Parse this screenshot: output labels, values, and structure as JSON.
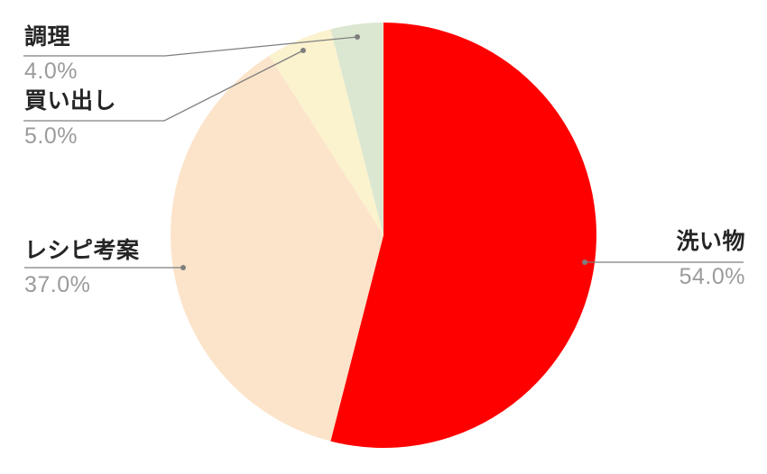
{
  "figure": {
    "background_color": "#ffffff",
    "title": ""
  },
  "chart_data": {
    "type": "pie",
    "title": "",
    "labels": [
      "洗い物",
      "レシピ考案",
      "買い出し",
      "調理"
    ],
    "values": [
      54.0,
      37.0,
      5.0,
      4.0
    ],
    "percent_labels": [
      "54.0%",
      "37.0%",
      "5.0%",
      "4.0%"
    ],
    "colors": [
      "#FE0000",
      "#FCE4CA",
      "#FBF2CE",
      "#DBE7D1"
    ],
    "total": 100,
    "start_angle_deg": 0,
    "direction": "clockwise",
    "legend_position": "none",
    "annotation_style": "callout-leader-lines",
    "label_text_color": "#252525",
    "percent_text_color": "#9b9b9b",
    "leader_line_color": "#7f7f7f"
  }
}
